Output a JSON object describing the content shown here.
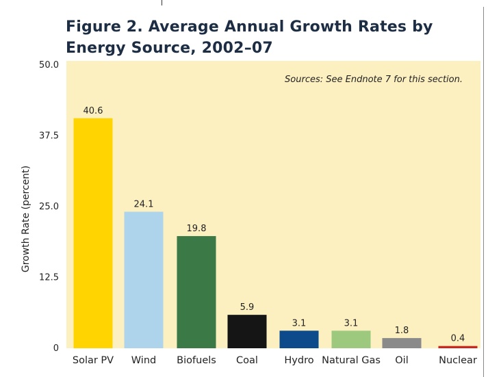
{
  "figure": {
    "title": "Figure 2. Average Annual Growth Rates by Energy Source, 2002–07",
    "source_note": "Sources: See Endnote 7 for this section."
  },
  "chart_data": {
    "type": "bar",
    "title": "Figure 2. Average Annual Growth Rates by Energy Source, 2002–07",
    "xlabel": "",
    "ylabel": "Growth Rate (percent)",
    "ylim": [
      0,
      50
    ],
    "yticks": [
      0,
      12.5,
      25.0,
      37.5,
      50.0
    ],
    "ytick_labels": [
      "0",
      "12.5",
      "25.0",
      "37.5",
      "50.0"
    ],
    "categories": [
      "Solar PV",
      "Wind",
      "Biofuels",
      "Coal",
      "Hydro",
      "Natural Gas",
      "Oil",
      "Nuclear"
    ],
    "values": [
      40.6,
      24.1,
      19.8,
      5.9,
      3.1,
      3.1,
      1.8,
      0.4
    ],
    "value_labels": [
      "40.6",
      "24.1",
      "19.8",
      "5.9",
      "3.1",
      "3.1",
      "1.8",
      "0.4"
    ],
    "colors": [
      "#ffd400",
      "#aed4ec",
      "#3b7a47",
      "#151515",
      "#0d4a8b",
      "#9cc97e",
      "#8a8a8a",
      "#c8281e"
    ],
    "grid": false,
    "background": "#fcefc0"
  }
}
